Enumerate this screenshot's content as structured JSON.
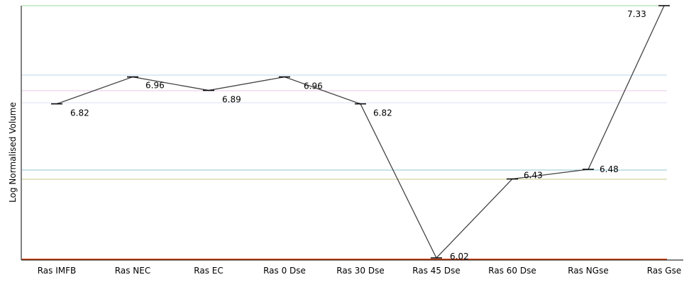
{
  "chart_data": {
    "type": "line",
    "title": "",
    "xlabel": "",
    "ylabel": "Log Normalised Volume",
    "categories": [
      "Ras IMFB",
      "Ras NEC",
      "Ras EC",
      "Ras 0 Dse",
      "Ras 30 Dse",
      "Ras 45 Dse",
      "Ras 60 Dse",
      "Ras NGse",
      "Ras Gse"
    ],
    "series": [
      {
        "values": [
          6.82,
          6.96,
          6.89,
          6.96,
          6.82,
          6.02,
          6.43,
          6.48,
          7.33
        ],
        "labels": [
          "6.82",
          "6.96",
          "6.89",
          "6.96",
          "6.82",
          "6.02",
          "6.43",
          "6.48",
          "7.33"
        ]
      }
    ],
    "ylim": [
      6.02,
      7.33
    ],
    "grid": false,
    "legend": "none",
    "colors": {
      "line": "#444444",
      "axis": "#000000",
      "reference_lines": [
        "#9ad89a",
        "#b8d4ee",
        "#e6c8e6",
        "#d8e0f0",
        "#8fc4cc",
        "#c8c88a",
        "#e05020"
      ]
    }
  }
}
